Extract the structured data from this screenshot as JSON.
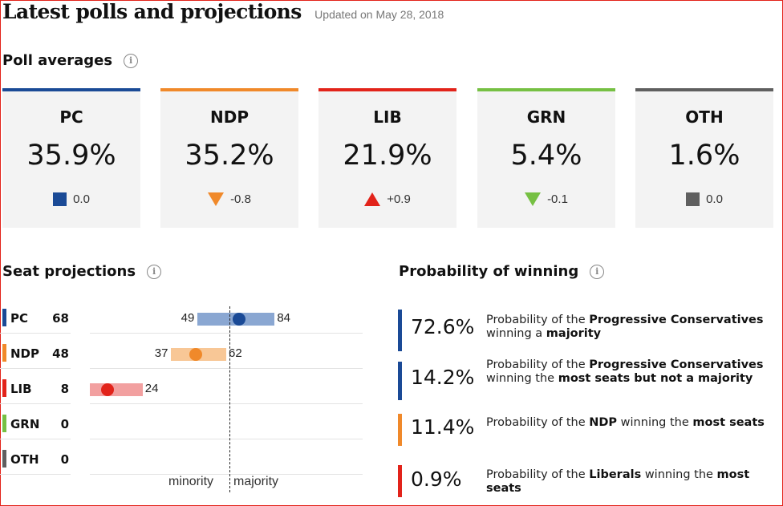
{
  "header": {
    "title": "Latest polls and projections",
    "updated": "Updated on May 28, 2018"
  },
  "sections": {
    "poll_averages": "Poll averages",
    "seat_projections": "Seat projections",
    "probability": "Probability of winning",
    "info_icon": "i"
  },
  "colors": {
    "PC": "#1a4a96",
    "NDP": "#f0892a",
    "LIB": "#e2231a",
    "GRN": "#76c043",
    "OTH": "#5f5f5f",
    "PC_range": "#8aa7d2",
    "NDP_range": "#f8c796",
    "LIB_range": "#f2a0a0"
  },
  "chart_data": [
    {
      "type": "table",
      "title": "Poll averages",
      "series": [
        {
          "party": "PC",
          "value": "35.9%",
          "change": "0.0",
          "direction": "none"
        },
        {
          "party": "NDP",
          "value": "35.2%",
          "change": "-0.8",
          "direction": "down"
        },
        {
          "party": "LIB",
          "value": "21.9%",
          "change": "+0.9",
          "direction": "up"
        },
        {
          "party": "GRN",
          "value": "5.4%",
          "change": "-0.1",
          "direction": "down"
        },
        {
          "party": "OTH",
          "value": "1.6%",
          "change": "0.0",
          "direction": "none"
        }
      ]
    },
    {
      "type": "scatter",
      "title": "Seat projections",
      "xlim": [
        0,
        124
      ],
      "majority_threshold": 63,
      "threshold_labels": [
        "minority",
        "majority"
      ],
      "series": [
        {
          "party": "PC",
          "seats": 68,
          "low": 49,
          "high": 84,
          "low_label": "49",
          "high_label": "84"
        },
        {
          "party": "NDP",
          "seats": 48,
          "low": 37,
          "high": 62,
          "low_label": "37",
          "high_label": "62"
        },
        {
          "party": "LIB",
          "seats": 8,
          "low": 0,
          "high": 24,
          "low_label": "",
          "high_label": "24"
        },
        {
          "party": "GRN",
          "seats": 0,
          "low": null,
          "high": null,
          "low_label": "",
          "high_label": ""
        },
        {
          "party": "OTH",
          "seats": 0,
          "low": null,
          "high": null,
          "low_label": "",
          "high_label": ""
        }
      ]
    },
    {
      "type": "table",
      "title": "Probability of winning",
      "rows": [
        {
          "value": "72.6%",
          "party": "PC",
          "parts": [
            "Probability of the ",
            "Progressive Conservatives",
            " winning a ",
            "majority",
            ""
          ]
        },
        {
          "value": "14.2%",
          "party": "PC",
          "parts": [
            "Probability of the ",
            "Progressive Conservatives",
            " winning the ",
            "most seats but not a majority",
            ""
          ]
        },
        {
          "value": "11.4%",
          "party": "NDP",
          "parts": [
            "Probability of the ",
            "NDP",
            " winning the ",
            "most seats",
            ""
          ]
        },
        {
          "value": "0.9%",
          "party": "LIB",
          "parts": [
            "Probability of the ",
            "Liberals",
            " winning the ",
            "most seats",
            ""
          ]
        }
      ]
    }
  ]
}
